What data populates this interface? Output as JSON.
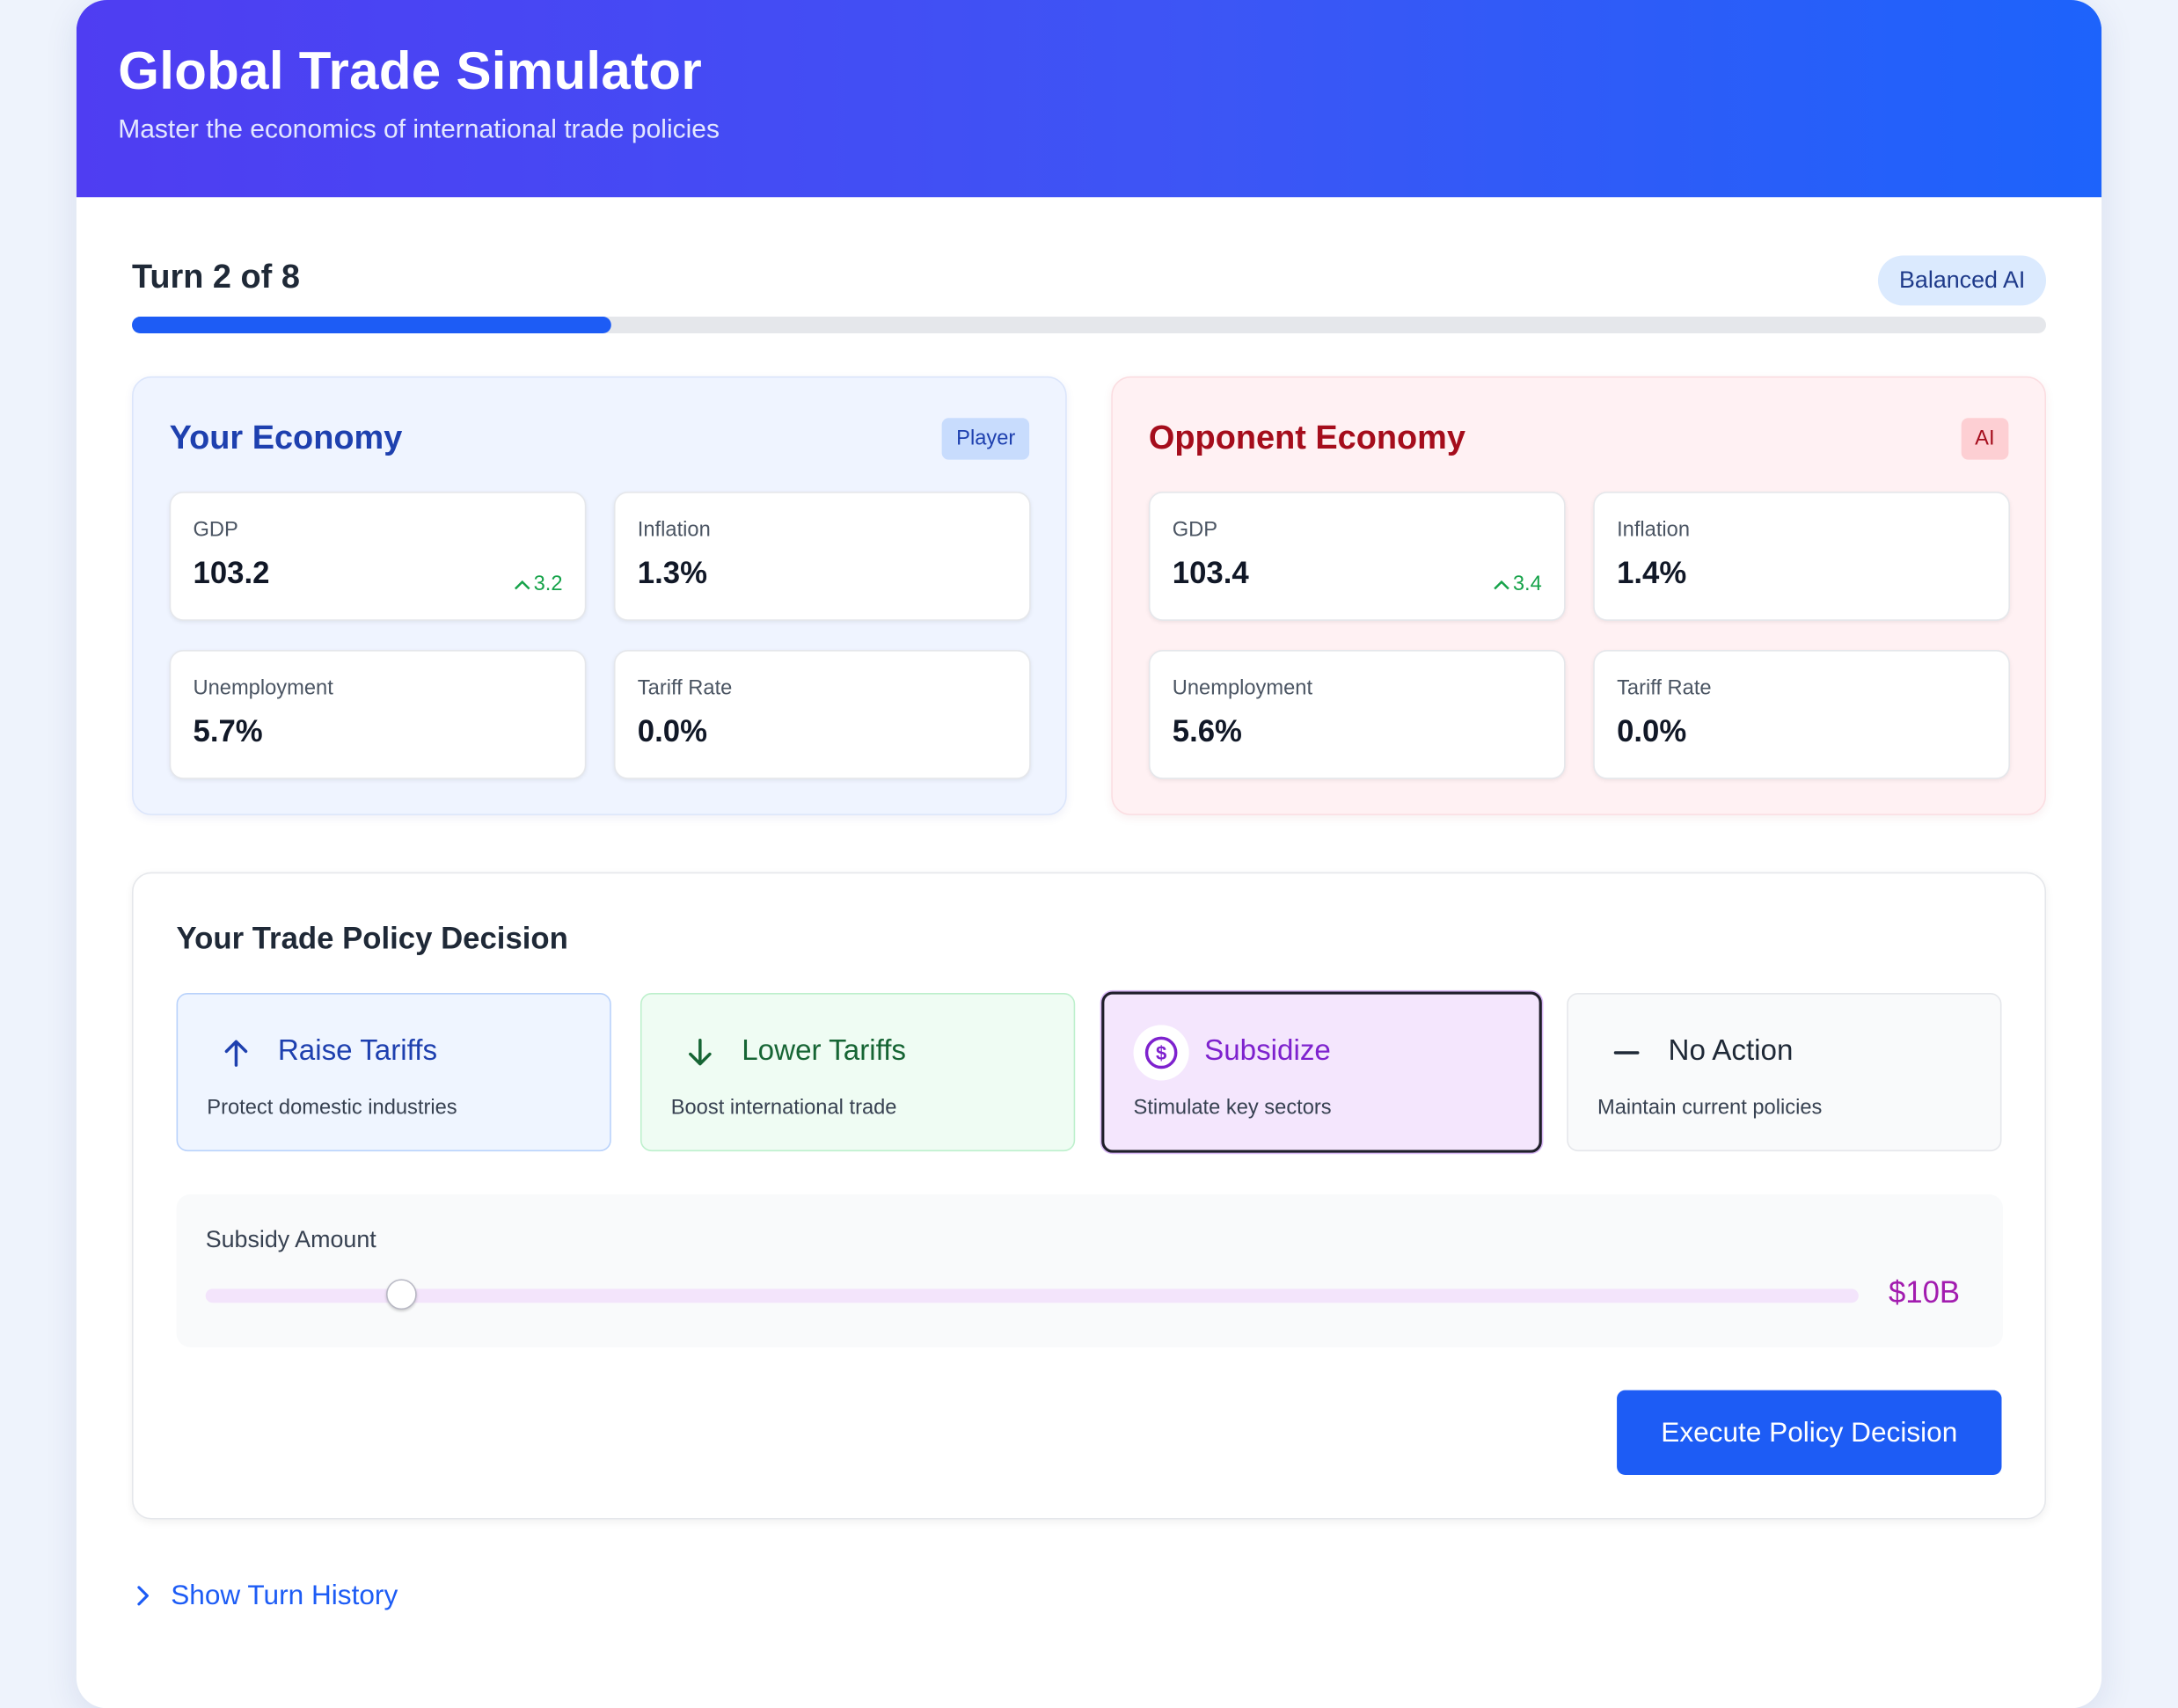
{
  "header": {
    "title": "Global Trade Simulator",
    "subtitle": "Master the economics of international trade policies"
  },
  "turn": {
    "label": "Turn 2 of 8",
    "current": 2,
    "total": 8,
    "progress_fraction": 0.25,
    "ai_badge": "Balanced AI"
  },
  "your_economy": {
    "title": "Your Economy",
    "tag": "Player",
    "stats": {
      "gdp": {
        "label": "GDP",
        "value": "103.2",
        "delta": "3.2"
      },
      "inflation": {
        "label": "Inflation",
        "value": "1.3%"
      },
      "unemployment": {
        "label": "Unemployment",
        "value": "5.7%"
      },
      "tariff": {
        "label": "Tariff Rate",
        "value": "0.0%"
      }
    }
  },
  "opponent_economy": {
    "title": "Opponent Economy",
    "tag": "AI",
    "stats": {
      "gdp": {
        "label": "GDP",
        "value": "103.4",
        "delta": "3.4"
      },
      "inflation": {
        "label": "Inflation",
        "value": "1.4%"
      },
      "unemployment": {
        "label": "Unemployment",
        "value": "5.6%"
      },
      "tariff": {
        "label": "Tariff Rate",
        "value": "0.0%"
      }
    }
  },
  "decision": {
    "title": "Your Trade Policy Decision",
    "options": [
      {
        "name": "Raise Tariffs",
        "desc": "Protect domestic industries",
        "icon": "arrow-up-icon"
      },
      {
        "name": "Lower Tariffs",
        "desc": "Boost international trade",
        "icon": "arrow-down-icon"
      },
      {
        "name": "Subsidize",
        "desc": "Stimulate key sectors",
        "icon": "dollar-icon",
        "selected": true
      },
      {
        "name": "No Action",
        "desc": "Maintain current policies",
        "icon": "minus-icon"
      }
    ],
    "slider": {
      "label": "Subsidy Amount",
      "value_label": "$10B",
      "fraction": 0.118
    },
    "execute_label": "Execute Policy Decision"
  },
  "history": {
    "label": "Show Turn History"
  },
  "colors": {
    "accent": "#1d5cf5",
    "gain": "#16a34a",
    "player": "#1e40af",
    "opponent": "#a50d1c",
    "subsidize": "#7e22ce"
  }
}
